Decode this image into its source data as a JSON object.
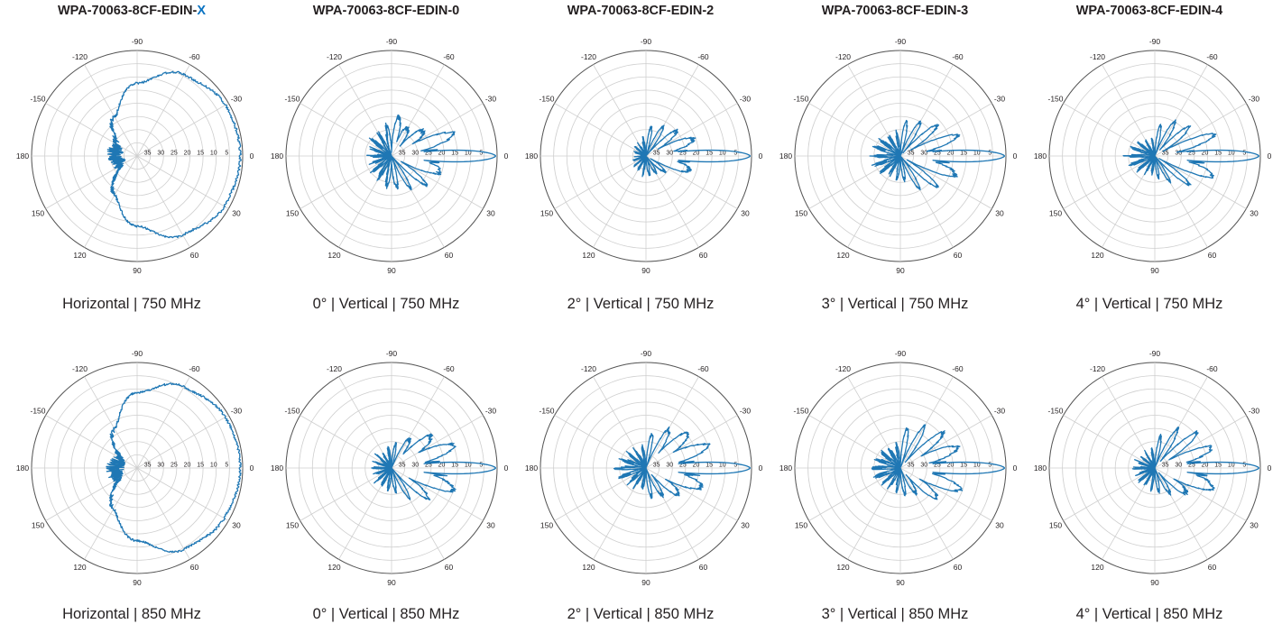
{
  "page": {
    "columns": [
      {
        "title_main": "WPA-70063-8CF-EDIN-",
        "title_accent": "X"
      },
      {
        "title_main": "WPA-70063-8CF-EDIN-0",
        "title_accent": ""
      },
      {
        "title_main": "WPA-70063-8CF-EDIN-2",
        "title_accent": ""
      },
      {
        "title_main": "WPA-70063-8CF-EDIN-3",
        "title_accent": ""
      },
      {
        "title_main": "WPA-70063-8CF-EDIN-4",
        "title_accent": ""
      }
    ]
  },
  "colors": {
    "trace": "#1f77b4",
    "grid": "#cfcfcf",
    "accent": "#0a73c2",
    "text": "#231f20"
  },
  "polar_axes": {
    "angle_ticks": [
      {
        "deg": 0,
        "label": "0"
      },
      {
        "deg": 30,
        "label": "30"
      },
      {
        "deg": 60,
        "label": "60"
      },
      {
        "deg": 90,
        "label": "90"
      },
      {
        "deg": 120,
        "label": "120"
      },
      {
        "deg": 150,
        "label": "150"
      },
      {
        "deg": 180,
        "label": "180"
      },
      {
        "deg": -150,
        "label": "-150"
      },
      {
        "deg": -120,
        "label": "-120"
      },
      {
        "deg": -90,
        "label": "-90"
      },
      {
        "deg": -60,
        "label": "-60"
      },
      {
        "deg": -30,
        "label": "-30"
      }
    ],
    "radial_ticks": [
      {
        "db": 5,
        "label": "5"
      },
      {
        "db": 10,
        "label": "10"
      },
      {
        "db": 15,
        "label": "15"
      },
      {
        "db": 20,
        "label": "20"
      },
      {
        "db": 25,
        "label": "25"
      },
      {
        "db": 30,
        "label": "30"
      },
      {
        "db": 35,
        "label": "35"
      }
    ],
    "r_range_db": [
      40,
      0
    ],
    "direction": "clockwise",
    "zero_location": "right",
    "grid": true
  },
  "chart_data": [
    {
      "type": "line",
      "title": "",
      "caption": "Horizontal |  750 MHz",
      "series": [
        {
          "color": "#1f77b4",
          "mode": "horizontal",
          "theta_deg": [
            0,
            30,
            60,
            90,
            120,
            150,
            180,
            -150,
            -120,
            -90,
            -60,
            -30
          ],
          "attenuation_db": [
            0.5,
            1.5,
            5,
            13,
            22,
            30,
            28,
            29,
            22,
            12,
            4,
            1
          ]
        }
      ]
    },
    {
      "type": "line",
      "title": "",
      "caption": "0°  |  Vertical |  750 MHz",
      "series": [
        {
          "color": "#1f77b4",
          "mode": "vertical",
          "theta_deg": [
            0,
            10,
            20,
            30,
            40,
            50,
            60,
            70,
            80,
            90,
            180,
            -90,
            -80,
            -70,
            -60,
            -50,
            -40,
            -30,
            -20,
            -10
          ],
          "attenuation_db": [
            0.5,
            14,
            20,
            24,
            22,
            30,
            25,
            30,
            27,
            27,
            30,
            27,
            24,
            22,
            27,
            23,
            24,
            18,
            14,
            16
          ]
        }
      ]
    },
    {
      "type": "line",
      "title": "",
      "caption": "2°  |  Vertical |  750 MHz",
      "series": [
        {
          "color": "#1f77b4",
          "mode": "vertical",
          "theta_deg": [
            0,
            10,
            20,
            30,
            40,
            50,
            60,
            70,
            80,
            90,
            180,
            -90,
            -80,
            -70,
            -60,
            -50,
            -40,
            -30,
            -20,
            -10
          ],
          "attenuation_db": [
            0.5,
            16,
            22,
            26,
            30,
            28,
            32,
            30,
            32,
            32,
            33,
            32,
            28,
            30,
            26,
            28,
            24,
            22,
            20,
            18
          ]
        }
      ]
    },
    {
      "type": "line",
      "title": "",
      "caption": "3°  |  Vertical |  750 MHz",
      "series": [
        {
          "color": "#1f77b4",
          "mode": "vertical",
          "theta_deg": [
            0,
            10,
            20,
            30,
            40,
            50,
            60,
            70,
            80,
            90,
            180,
            -90,
            -80,
            -70,
            -60,
            -50,
            -40,
            -30,
            -20,
            -10
          ],
          "attenuation_db": [
            0.5,
            14,
            17,
            25,
            21,
            29,
            25,
            31,
            30,
            30,
            27,
            30,
            26,
            29,
            24,
            26,
            21,
            23,
            16,
            18
          ]
        }
      ]
    },
    {
      "type": "line",
      "title": "",
      "caption": "4°  |  Vertical |  750 MHz",
      "series": [
        {
          "color": "#1f77b4",
          "mode": "vertical",
          "theta_deg": [
            0,
            10,
            20,
            30,
            40,
            50,
            60,
            70,
            80,
            90,
            180,
            -90,
            -80,
            -70,
            -60,
            -50,
            -40,
            -30,
            -20,
            -10
          ],
          "attenuation_db": [
            0.5,
            14,
            16,
            26,
            22,
            30,
            28,
            33,
            31,
            32,
            28,
            33,
            27,
            29,
            24,
            25,
            22,
            24,
            15,
            19
          ]
        }
      ]
    },
    {
      "type": "line",
      "title": "",
      "caption": "Horizontal |  850 MHz",
      "series": [
        {
          "color": "#1f77b4",
          "mode": "horizontal",
          "theta_deg": [
            0,
            30,
            60,
            90,
            120,
            150,
            180,
            -150,
            -120,
            -90,
            -60,
            -30
          ],
          "attenuation_db": [
            0.5,
            1.5,
            4,
            12,
            21,
            29,
            28,
            30,
            22,
            11,
            4,
            1
          ]
        }
      ]
    },
    {
      "type": "line",
      "title": "",
      "caption": "0°  |  Vertical |  850 MHz",
      "series": [
        {
          "color": "#1f77b4",
          "mode": "vertical",
          "theta_deg": [
            0,
            10,
            20,
            30,
            40,
            50,
            60,
            70,
            80,
            90,
            180,
            -90,
            -80,
            -70,
            -60,
            -50,
            -40,
            -30,
            -20,
            -10
          ],
          "attenuation_db": [
            0.5,
            12,
            14,
            20,
            21,
            27,
            26,
            31,
            30,
            30,
            31,
            31,
            30,
            33,
            26,
            22,
            20,
            16,
            14,
            15
          ]
        }
      ]
    },
    {
      "type": "line",
      "title": "",
      "caption": "2°  |  Vertical |  850 MHz",
      "series": [
        {
          "color": "#1f77b4",
          "mode": "vertical",
          "theta_deg": [
            0,
            10,
            20,
            30,
            40,
            50,
            60,
            70,
            80,
            90,
            180,
            -90,
            -80,
            -70,
            -60,
            -50,
            -40,
            -30,
            -20,
            -10
          ],
          "attenuation_db": [
            0.5,
            13,
            17,
            19,
            23,
            25,
            27,
            30,
            28,
            31,
            27,
            31,
            26,
            30,
            22,
            20,
            18,
            16,
            14,
            15
          ]
        }
      ]
    },
    {
      "type": "line",
      "title": "",
      "caption": "3°  |  Vertical |  850 MHz",
      "series": [
        {
          "color": "#1f77b4",
          "mode": "vertical",
          "theta_deg": [
            0,
            10,
            20,
            30,
            40,
            50,
            60,
            70,
            80,
            90,
            180,
            -90,
            -80,
            -70,
            -60,
            -50,
            -40,
            -30,
            -20,
            -10
          ],
          "attenuation_db": [
            0.5,
            15,
            15,
            19,
            21,
            24,
            28,
            31,
            29,
            30,
            27,
            30,
            24,
            28,
            21,
            25,
            18,
            19,
            16,
            16
          ]
        }
      ]
    },
    {
      "type": "line",
      "title": "",
      "caption": "4°  |  Vertical |  850 MHz",
      "series": [
        {
          "color": "#1f77b4",
          "mode": "vertical",
          "theta_deg": [
            0,
            10,
            20,
            30,
            40,
            50,
            60,
            70,
            80,
            90,
            180,
            -90,
            -80,
            -70,
            -60,
            -50,
            -40,
            -30,
            -20,
            -10
          ],
          "attenuation_db": [
            0.5,
            12,
            16,
            19,
            24,
            26,
            28,
            31,
            30,
            31,
            30,
            32,
            27,
            30,
            22,
            25,
            18,
            22,
            16,
            16
          ]
        }
      ]
    }
  ]
}
